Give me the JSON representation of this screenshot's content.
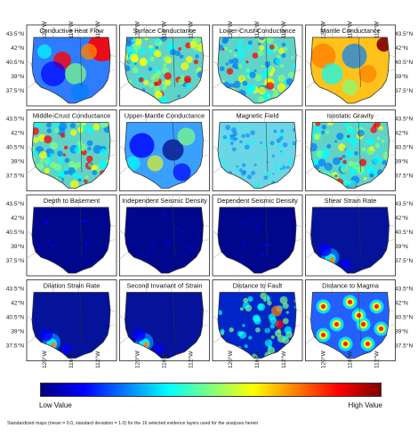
{
  "panels": [
    {
      "title": "Conductive Heat Flow",
      "pattern": "heat"
    },
    {
      "title": "Surface Conductance",
      "pattern": "speckle"
    },
    {
      "title": "Lower-Crust Conductance",
      "pattern": "speckle"
    },
    {
      "title": "Mantle Conductance",
      "pattern": "mantle"
    },
    {
      "title": "Middle-Crust Conductance",
      "pattern": "speckle"
    },
    {
      "title": "Upper-Mantle Conductance",
      "pattern": "blobs"
    },
    {
      "title": "Magnetic Field",
      "pattern": "magnetic"
    },
    {
      "title": "Isostatic Gravity",
      "pattern": "speckle"
    },
    {
      "title": "Depth to Basement",
      "pattern": "dark"
    },
    {
      "title": "Independent Seismic Density",
      "pattern": "dark"
    },
    {
      "title": "Dependent Seismic Density",
      "pattern": "dark"
    },
    {
      "title": "Shear Strain Rate",
      "pattern": "strain"
    },
    {
      "title": "Dilation Strain Rate",
      "pattern": "strain"
    },
    {
      "title": "Second Invariant of Strain",
      "pattern": "strain"
    },
    {
      "title": "Distance to Fault",
      "pattern": "fault"
    },
    {
      "title": "Distance to Magma",
      "pattern": "magma"
    }
  ],
  "axes": {
    "longitude_ticks": [
      "120°W",
      "116°W",
      "112°W"
    ],
    "latitude_ticks": [
      "43.5°N",
      "42°N",
      "40.5°N",
      "39°N",
      "37.5°N"
    ]
  },
  "legend": {
    "low_label": "Low Value",
    "high_label": "High Value",
    "colors": [
      "#00007f",
      "#0000ff",
      "#007fff",
      "#00ffff",
      "#7fff7f",
      "#ffff00",
      "#ff7f00",
      "#ff0000",
      "#7f0000"
    ]
  },
  "caption": "Standardized maps (mean = 0.0, standard deviation = 1.0) for the 16 selected evidence layers used for the analyses herein"
}
